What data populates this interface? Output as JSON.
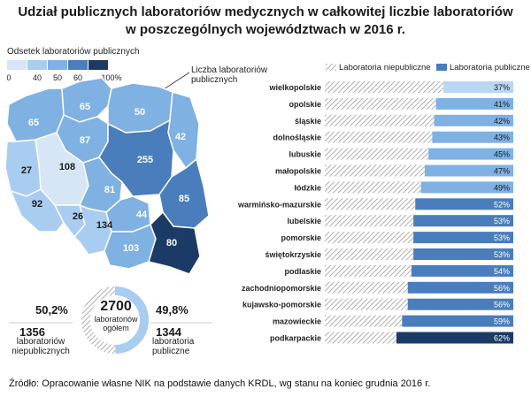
{
  "title_line1": "Udział publicznych laboratoriów medycznych w całkowitej liczbie laboratoriów",
  "title_line2": "w poszczególnych województwach w 2016 r.",
  "map_legend": {
    "title": "Odsetek laboratoriów  publicznych",
    "ticks": [
      "0",
      "40",
      "50",
      "60",
      "100%"
    ],
    "colors": [
      "#d7e6f6",
      "#a9cdf0",
      "#7fb1e3",
      "#4a7dbb",
      "#1c3a66"
    ]
  },
  "map_callout": "Liczba laboratoriów publicznych",
  "map_values": {
    "zachodniopomorskie": "65",
    "pomorskie": "65",
    "warminsko_mazurskie": "50",
    "podlaskie": "42",
    "kujawsko_pomorskie": "87",
    "wielkopolskie": "108",
    "lubuskie": "27",
    "mazowieckie": "255",
    "lodzkie": "81",
    "lubelskie": "85",
    "dolnoslaskie": "92",
    "opolskie": "26",
    "slaskie": "134",
    "swietokrzyskie": "44",
    "malopolskie": "103",
    "podkarpackie": "80"
  },
  "summary": {
    "left_pct": "50,2%",
    "left_num": "1356",
    "left_lbl1": "laboratoriów",
    "left_lbl2": "niepublicznych",
    "right_pct": "49,8%",
    "right_num": "1344",
    "right_lbl1": "laboratoria",
    "right_lbl2": "publiczne",
    "center_num": "2700",
    "center_lbl1": "laboratoriów",
    "center_lbl2": "ogółem",
    "public_share": 49.8
  },
  "chart_data": {
    "type": "bar",
    "orientation": "horizontal-stacked-100",
    "legend": [
      "Laboratoria niepubliczne",
      "Laboratoria publiczne"
    ],
    "legend_placement": "top",
    "categories": [
      "wielkopolskie",
      "opolskie",
      "śląskie",
      "dolnośląskie",
      "lubuskie",
      "małopolskie",
      "łódzkie",
      "warmińsko-mazurskie",
      "lubelskie",
      "pomorskie",
      "świętokrzyskie",
      "podlaskie",
      "zachodniopomorskie",
      "kujawsko-pomorskie",
      "mazowieckie",
      "podkarpackie"
    ],
    "series": [
      {
        "name": "Laboratoria niepubliczne",
        "values": [
          63,
          59,
          58,
          57,
          55,
          53,
          51,
          48,
          47,
          47,
          47,
          46,
          44,
          44,
          41,
          38
        ]
      },
      {
        "name": "Laboratoria publiczne",
        "values": [
          37,
          41,
          42,
          43,
          45,
          47,
          49,
          52,
          53,
          53,
          53,
          54,
          56,
          56,
          59,
          62
        ]
      }
    ],
    "labels": [
      "37%",
      "41%",
      "42%",
      "43%",
      "45%",
      "47%",
      "49%",
      "52%",
      "53%",
      "53%",
      "53%",
      "54%",
      "56%",
      "56%",
      "59%",
      "62%"
    ],
    "xlim": [
      0,
      100
    ]
  },
  "source": "Źródło:  Opracowanie własne NIK na podstawie danych KRDL, wg stanu na koniec grudnia 2016 r."
}
